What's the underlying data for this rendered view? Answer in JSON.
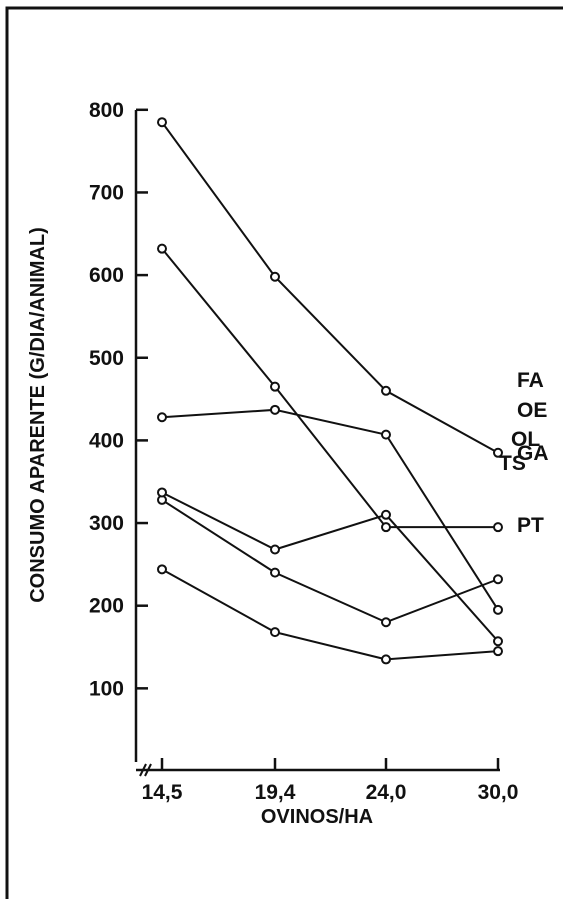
{
  "chart_data": {
    "type": "line",
    "xlabel": "OVINOS/HA",
    "ylabel": "CONSUMO APARENTE (G/DIA/ANIMAL)",
    "categories": [
      "14,5",
      "19,4",
      "24,0",
      "30,0"
    ],
    "ylim": [
      0,
      800
    ],
    "yticks": [
      "100",
      "200",
      "300",
      "400",
      "500",
      "600",
      "700",
      "800"
    ],
    "y_axis_break": true,
    "grid": false,
    "legend": "inline labels at line ends",
    "colors": {
      "line": "#111111",
      "background": "#ffffff"
    },
    "series": [
      {
        "name": "GA",
        "values": [
          785,
          598,
          460,
          385
        ]
      },
      {
        "name": "PT",
        "values": [
          632,
          465,
          295,
          295
        ]
      },
      {
        "name": "FA",
        "values": [
          328,
          240,
          180,
          232
        ]
      },
      {
        "name": "OE",
        "values": [
          428,
          437,
          407,
          195
        ]
      },
      {
        "name": "OL",
        "values": [
          337,
          268,
          310,
          157
        ]
      },
      {
        "name": "TS",
        "values": [
          244,
          168,
          135,
          145
        ]
      }
    ]
  }
}
